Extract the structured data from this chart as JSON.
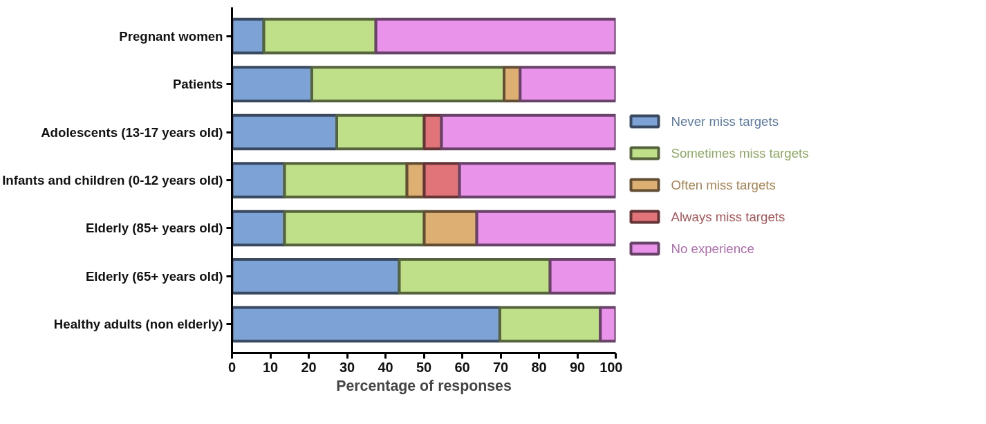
{
  "chart_data": {
    "type": "bar",
    "orientation": "horizontal",
    "stacked": true,
    "xlabel": "Percentage of responses",
    "categories": [
      "Pregnant women",
      "Patients",
      "Adolescents (13-17 years old)",
      "Infants and children (0-12 years old)",
      "Elderly (85+ years old)",
      "Elderly (65+ years old)",
      "Healthy adults (non elderly)"
    ],
    "series": [
      {
        "name": "Never miss targets",
        "color": "#7da3d6",
        "values": [
          8.3,
          20.8,
          27.3,
          13.7,
          13.7,
          43.6,
          69.8
        ]
      },
      {
        "name": "Sometimes miss targets",
        "color": "#bfdf88",
        "values": [
          29.2,
          50.1,
          22.8,
          31.9,
          36.4,
          39.3,
          26.2
        ]
      },
      {
        "name": "Often miss targets",
        "color": "#deaf72",
        "values": [
          null,
          4.2,
          null,
          4.5,
          13.7,
          null,
          null
        ]
      },
      {
        "name": "Always miss targets",
        "color": "#e07479",
        "values": [
          null,
          null,
          4.5,
          9.2,
          null,
          null,
          null
        ]
      },
      {
        "name": "No experience",
        "color": "#ea93ea",
        "values": [
          62.5,
          24.9,
          45.4,
          40.7,
          36.2,
          17.1,
          4.0
        ]
      }
    ],
    "xlim": [
      0,
      100
    ],
    "xticks": [
      0,
      10,
      20,
      30,
      40,
      50,
      60,
      70,
      80,
      90,
      100
    ],
    "grid": false,
    "legend": "right"
  }
}
